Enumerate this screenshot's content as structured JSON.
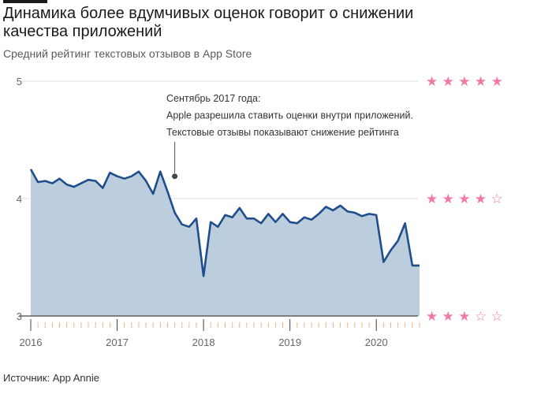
{
  "header": {
    "title": "Динамика более вдумчивых оценок говорит о снижении качества приложений",
    "subtitle": "Средний рейтинг текстовых отзывов в App Store"
  },
  "footer": {
    "source": "Источник: App Annie"
  },
  "colors": {
    "line": "#1f4e8c",
    "area": "#bccddd",
    "star": "#f07aa5",
    "grid": "#dcdcdc",
    "axis": "#444444",
    "minor_tick": "#f0b48a"
  },
  "chart_data": {
    "type": "area",
    "title": "",
    "xlabel": "",
    "ylabel": "",
    "ylim": [
      3,
      5
    ],
    "xlim": [
      "2016-01",
      "2020-07"
    ],
    "yticks": [
      3,
      4,
      5
    ],
    "ytick_labels": [
      "3",
      "4",
      "5"
    ],
    "xtick_labels": [
      "2016",
      "2017",
      "2018",
      "2019",
      "2020"
    ],
    "xtick_dates": [
      "2016-01",
      "2017-01",
      "2018-01",
      "2019-01",
      "2020-01"
    ],
    "grid": true,
    "series": [
      {
        "x": [
          "2016-01",
          "2016-02",
          "2016-03",
          "2016-04",
          "2016-05",
          "2016-06",
          "2016-07",
          "2016-08",
          "2016-09",
          "2016-10",
          "2016-11",
          "2016-12",
          "2017-01",
          "2017-02",
          "2017-03",
          "2017-04",
          "2017-05",
          "2017-06",
          "2017-07",
          "2017-08",
          "2017-09",
          "2017-10",
          "2017-11",
          "2017-12",
          "2018-01",
          "2018-02",
          "2018-03",
          "2018-04",
          "2018-05",
          "2018-06",
          "2018-07",
          "2018-08",
          "2018-09",
          "2018-10",
          "2018-11",
          "2018-12",
          "2019-01",
          "2019-02",
          "2019-03",
          "2019-04",
          "2019-05",
          "2019-06",
          "2019-07",
          "2019-08",
          "2019-09",
          "2019-10",
          "2019-11",
          "2019-12",
          "2020-01",
          "2020-02",
          "2020-03",
          "2020-04",
          "2020-05",
          "2020-06",
          "2020-07"
        ],
        "values": [
          4.25,
          4.14,
          4.15,
          4.13,
          4.17,
          4.12,
          4.1,
          4.13,
          4.16,
          4.15,
          4.09,
          4.22,
          4.19,
          4.17,
          4.19,
          4.23,
          4.15,
          4.04,
          4.23,
          4.06,
          3.88,
          3.78,
          3.76,
          3.83,
          3.34,
          3.8,
          3.76,
          3.86,
          3.84,
          3.92,
          3.83,
          3.83,
          3.79,
          3.87,
          3.8,
          3.87,
          3.8,
          3.79,
          3.84,
          3.82,
          3.87,
          3.93,
          3.9,
          3.94,
          3.89,
          3.88,
          3.85,
          3.87,
          3.86,
          3.46,
          3.56,
          3.64,
          3.79,
          3.43,
          3.43
        ]
      }
    ],
    "annotation": {
      "date": "2017-09",
      "value": 4.19,
      "lines": [
        "Сентябрь 2017 года:",
        "Apple разрешила ставить оценки внутри приложений.",
        "Текстовые отзывы показывают снижение рейтинга"
      ]
    },
    "star_rows": [
      {
        "value": 5,
        "stars": "★ ★ ★ ★ ★"
      },
      {
        "value": 4,
        "stars": "★ ★ ★ ★ ☆"
      },
      {
        "value": 3,
        "stars": "★ ★ ★ ☆ ☆"
      }
    ]
  }
}
